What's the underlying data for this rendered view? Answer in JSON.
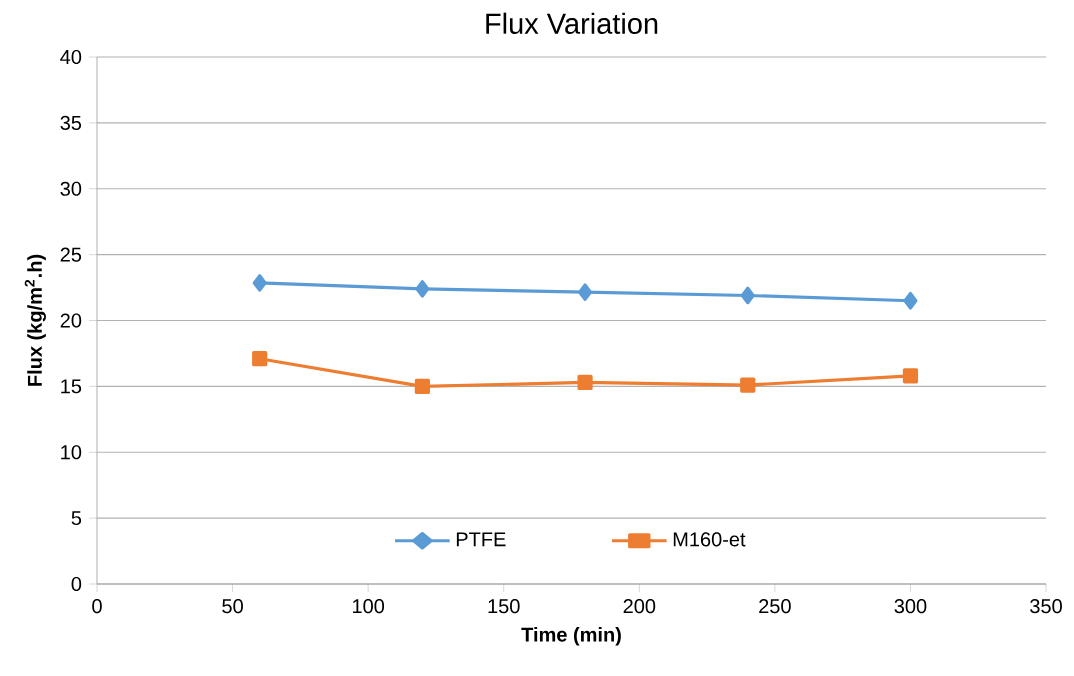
{
  "chart_data": {
    "type": "line",
    "title": "Flux Variation",
    "xlabel": "Time (min)",
    "ylabel": "Flux (kg/m$^{2}$.h)",
    "x": [
      60,
      120,
      180,
      240,
      300
    ],
    "series": [
      {
        "name": "PTFE",
        "color": "#5b9bd5",
        "marker": "diamond",
        "values": [
          22.85,
          22.4,
          22.15,
          21.9,
          21.5
        ]
      },
      {
        "name": "M160-et",
        "color": "#ed7d31",
        "marker": "square",
        "values": [
          17.1,
          15.0,
          15.3,
          15.1,
          15.8
        ]
      }
    ],
    "xlim": [
      0,
      350
    ],
    "xticks": [
      0,
      50,
      100,
      150,
      200,
      250,
      300,
      350
    ],
    "ylim": [
      0,
      40
    ],
    "yticks": [
      0,
      5,
      10,
      15,
      20,
      25,
      30,
      35,
      40
    ],
    "grid": "y",
    "legend": "bottom",
    "line_style": "solid"
  }
}
